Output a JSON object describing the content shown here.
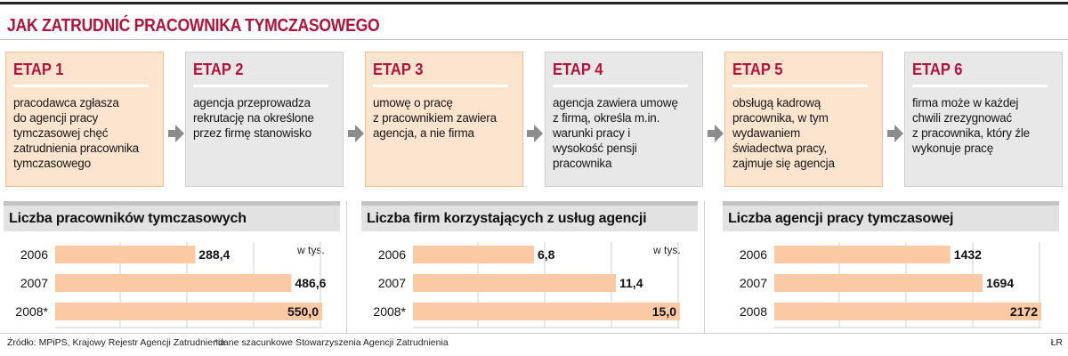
{
  "title": "JAK ZATRUDNIĆ PRACOWNIKA TYMCZASOWEGO",
  "colors": {
    "accent": "#b3123a",
    "bar": "#fbc9a4",
    "step_orange": "#fde4cf",
    "step_gray": "#e8e8e8"
  },
  "steps": [
    {
      "title": "ETAP 1",
      "text": "pracodawca zgłasza\ndo agencji pracy\ntymczasowej  chęć\nzatrudnienia pracownika\ntymczasowego",
      "style": "orange"
    },
    {
      "title": "ETAP 2",
      "text": "agencja przeprowadza\nrekrutację na określone\nprzez firmę stanowisko",
      "style": "gray"
    },
    {
      "title": "ETAP 3",
      "text": "umowę o pracę\nz pracownikiem zawiera\nagencja, a nie firma",
      "style": "orange"
    },
    {
      "title": "ETAP 4",
      "text": "agencja zawiera umowę\nz firmą, określa m.in.\nwarunki pracy i\nwysokość pensji\npracownika",
      "style": "gray"
    },
    {
      "title": "ETAP 5",
      "text": "obsługą kadrową\npracownika, w tym\nwydawaniem\nświadectwa pracy,\nzajmuje się agencja",
      "style": "orange"
    },
    {
      "title": "ETAP 6",
      "text": "firma może w każdej\nchwili zrezygnować\nz pracownika, który źle\nwykonuje pracę",
      "style": "gray"
    }
  ],
  "chart_data": [
    {
      "type": "bar",
      "orientation": "horizontal",
      "title": "Liczba pracowników tymczasowych",
      "unit": "w tys.",
      "categories": [
        "2006",
        "2007",
        "2008*"
      ],
      "values": [
        288.4,
        486.6,
        550.0
      ],
      "value_labels": [
        "288,4",
        "486,6",
        "550,0"
      ],
      "xlim": [
        0,
        550
      ],
      "grid": true
    },
    {
      "type": "bar",
      "orientation": "horizontal",
      "title": "Liczba firm korzystających z usług agencji",
      "unit": "w tys.",
      "categories": [
        "2006",
        "2007",
        "2008*"
      ],
      "values": [
        6.8,
        11.4,
        15.0
      ],
      "value_labels": [
        "6,8",
        "11,4",
        "15,0"
      ],
      "xlim": [
        0,
        15
      ],
      "grid": true
    },
    {
      "type": "bar",
      "orientation": "horizontal",
      "title": "Liczba agencji pracy tymczasowej",
      "unit": "",
      "categories": [
        "2006",
        "2007",
        "2008"
      ],
      "values": [
        1432,
        1694,
        2172
      ],
      "value_labels": [
        "1432",
        "1694",
        "2172"
      ],
      "xlim": [
        0,
        2172
      ],
      "grid": true
    }
  ],
  "footer": {
    "source": "Źródło: MPiPS, Krajowy Rejestr Agencji Zatrudnienia",
    "note": "*dane szacunkowe Stowarzyszenia Agencji Zatrudnienia",
    "credit": "ŁR"
  }
}
